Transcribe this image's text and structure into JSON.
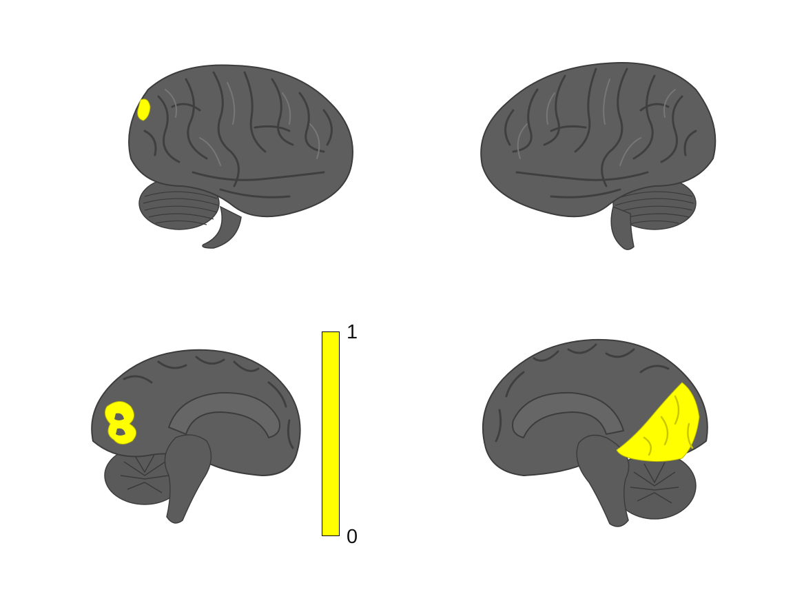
{
  "colors": {
    "brain_surface": "#5e5e5e",
    "brain_gyrus_line": "#404040",
    "brain_highlight": "#777777",
    "activation": "#ffff00",
    "background": "#ffffff"
  },
  "colorbar": {
    "max_label": "1",
    "min_label": "0",
    "range": [
      0,
      1
    ],
    "color": "#ffff00"
  },
  "views": [
    {
      "name": "left-lateral",
      "activation_present": true
    },
    {
      "name": "right-lateral",
      "activation_present": false
    },
    {
      "name": "left-medial",
      "activation_present": true
    },
    {
      "name": "right-medial",
      "activation_present": true
    }
  ]
}
